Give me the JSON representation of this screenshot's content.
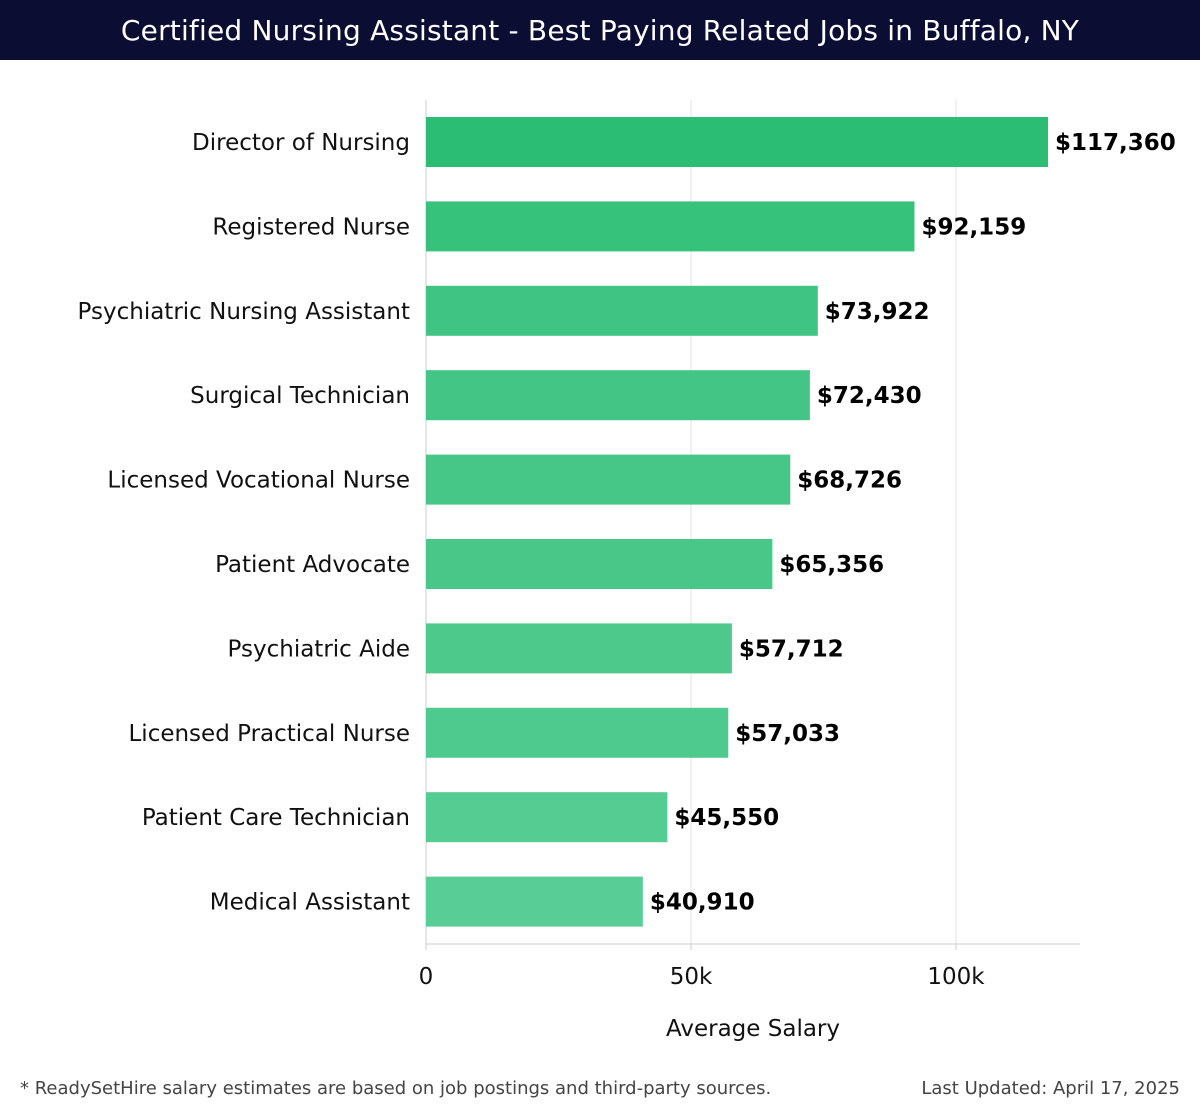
{
  "header": {
    "title": "Certified Nursing Assistant - Best Paying Related Jobs in Buffalo, NY"
  },
  "chart_data": {
    "type": "bar",
    "orientation": "horizontal",
    "title": "Certified Nursing Assistant - Best Paying Related Jobs in Buffalo, NY",
    "xlabel": "Average Salary",
    "ylabel": "",
    "xlim": [
      0,
      123400
    ],
    "xticks": [
      0,
      50000,
      100000
    ],
    "xtick_labels": [
      "0",
      "50k",
      "100k"
    ],
    "grid": "vertical",
    "categories": [
      "Director of Nursing",
      "Registered Nurse",
      "Psychiatric Nursing Assistant",
      "Surgical Technician",
      "Licensed Vocational Nurse",
      "Patient Advocate",
      "Psychiatric Aide",
      "Licensed Practical Nurse",
      "Patient Care Technician",
      "Medical Assistant"
    ],
    "values": [
      117360,
      92159,
      73922,
      72430,
      68726,
      65356,
      57712,
      57033,
      45550,
      40910
    ],
    "value_labels": [
      "$117,360",
      "$92,159",
      "$73,922",
      "$72,430",
      "$68,726",
      "$65,356",
      "$57,712",
      "$57,033",
      "$45,550",
      "$40,910"
    ],
    "colors": [
      "#2bbd74",
      "#37c27c",
      "#40c483",
      "#43c585",
      "#46c687",
      "#48c789",
      "#4dc98c",
      "#4fca8e",
      "#55cc92",
      "#58cd95"
    ]
  },
  "footer": {
    "note": "* ReadySetHire salary estimates are based on job postings and third-party sources.",
    "updated": "Last Updated: April 17, 2025"
  }
}
